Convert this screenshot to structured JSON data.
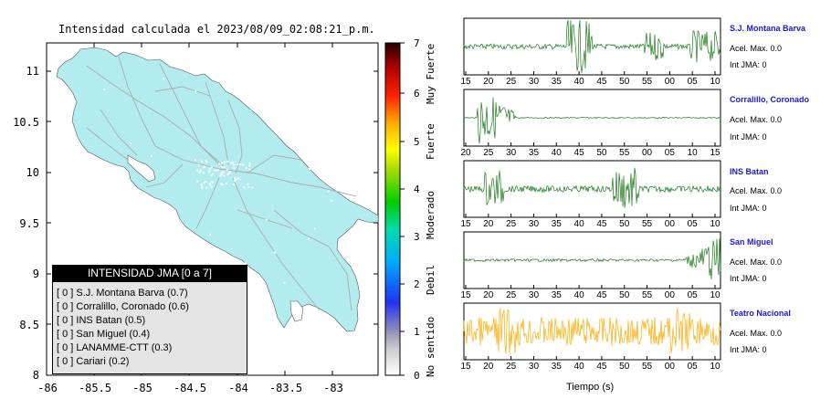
{
  "map": {
    "title": "Intensidad calculada el 2023/08/09_02:08:21_p.m.",
    "y_ticks": [
      "11",
      "10.5",
      "10",
      "9.5",
      "9",
      "8.5",
      "8"
    ],
    "x_ticks": [
      "-86",
      "-85.5",
      "-85",
      "-84.5",
      "-84",
      "-83.5",
      "-83"
    ],
    "land_color": "#b3ecee",
    "road_color": "#aaaaaa"
  },
  "colorbar": {
    "ticks": [
      "7",
      "6",
      "5",
      "4",
      "3",
      "2",
      "1",
      "0"
    ],
    "words": [
      "Muy Fuerte",
      "Fuerte",
      "Moderado",
      "Debil",
      "No sentido"
    ],
    "colors": [
      "#000000",
      "#8b0000",
      "#ff0000",
      "#ff8c00",
      "#ffff00",
      "#00cc00",
      "#00ccff",
      "#0044ff",
      "#6666cc",
      "#ffffff"
    ]
  },
  "legend": {
    "title": "INTENSIDAD JMA [0 a 7]",
    "rows": [
      "[ 0 ] S.J. Montana Barva (0.7)",
      "[ 0 ] Corralillo, Coronado (0.6)",
      "[ 0 ] INS Batan (0.5)",
      "[ 0 ] San Miguel (0.4)",
      "[ 0 ] LANAMME-CTT (0.3)",
      "[ 0 ] Cariari (0.2)"
    ]
  },
  "stations": [
    {
      "name": "S.J. Montana Barva",
      "accel": "Acel. Max. 0.0",
      "jma": "Int JMA: 0",
      "color": "#1a7a1a",
      "ticks": [
        "15",
        "20",
        "25",
        "30",
        "35",
        "40",
        "45",
        "50",
        "55",
        "00",
        "05",
        "10"
      ]
    },
    {
      "name": "Corralillo, Coronado",
      "accel": "Acel. Max. 0.0",
      "jma": "Int JMA: 0",
      "color": "#1a7a1a",
      "ticks": [
        "20",
        "25",
        "30",
        "35",
        "40",
        "45",
        "50",
        "55",
        "00",
        "05",
        "10",
        "15"
      ]
    },
    {
      "name": "INS Batan",
      "accel": "Acel. Max. 0.0",
      "jma": "Int JMA: 0",
      "color": "#1a7a1a",
      "ticks": [
        "15",
        "20",
        "25",
        "30",
        "35",
        "40",
        "45",
        "50",
        "55",
        "00",
        "05",
        "10"
      ]
    },
    {
      "name": "San Miguel",
      "accel": "Acel. Max. 0.0",
      "jma": "Int JMA: 0",
      "color": "#1a7a1a",
      "ticks": [
        "15",
        "20",
        "25",
        "30",
        "35",
        "40",
        "45",
        "50",
        "55",
        "00",
        "05",
        "10"
      ]
    },
    {
      "name": "Teatro Nacional",
      "accel": "Acel. Max. 0.0",
      "jma": "Int JMA: 0",
      "color": "#ffaa00",
      "ticks": [
        "15",
        "20",
        "25",
        "30",
        "35",
        "40",
        "45",
        "50",
        "55",
        "00",
        "05",
        "10"
      ]
    }
  ],
  "time_axis_label": "Tiempo (s)"
}
